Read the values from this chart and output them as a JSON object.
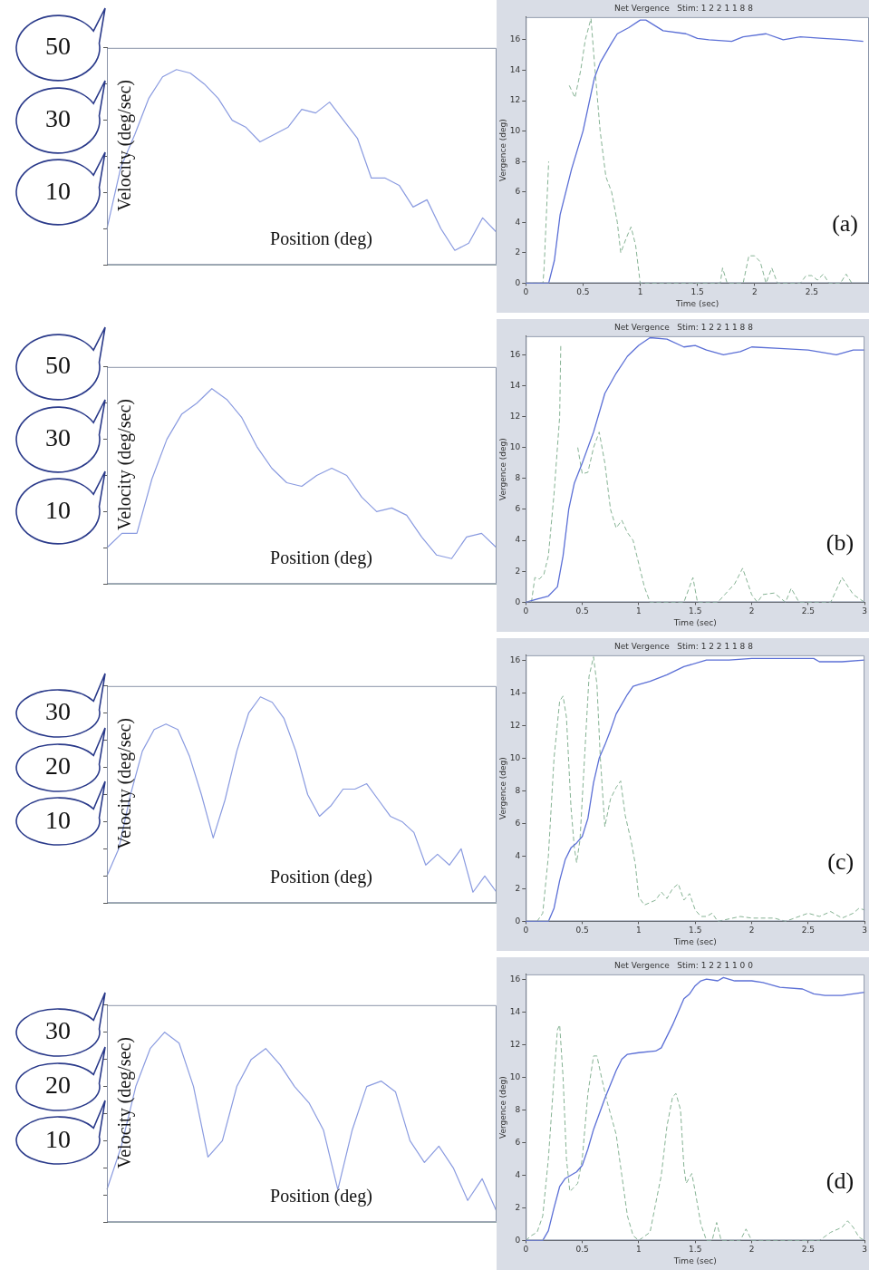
{
  "chart_data": [
    {
      "type": "line",
      "xlabel": "Position (deg)",
      "ylabel": "Velocity (deg/sec)",
      "categories": [
        null,
        null,
        null,
        null,
        null,
        null,
        null,
        null,
        null,
        null,
        null,
        null,
        null,
        null,
        null,
        null,
        null,
        null,
        null,
        null,
        null,
        null,
        null,
        null,
        null,
        null,
        null,
        null,
        null
      ],
      "ylim": [
        -10,
        50
      ],
      "yticks": [
        {
          "value": -10,
          "label": null
        },
        {
          "value": 0,
          "label": null
        },
        10,
        {
          "value": 20,
          "label": null
        },
        30,
        {
          "value": 40,
          "label": null
        },
        50
      ],
      "tick_labels": "y",
      "series": [
        {
          "color": "#8a9be0",
          "values": [
            0,
            17,
            26,
            36,
            42,
            44,
            43,
            40,
            36,
            30,
            28,
            24,
            26,
            28,
            33,
            32,
            35,
            30,
            25,
            14,
            14,
            12,
            6,
            8,
            0,
            -6,
            -4,
            3,
            -1
          ]
        }
      ]
    },
    {
      "type": "line",
      "title": "Net Vergence   Stim: 1 2 2 1 1 8 8",
      "xlabel": "Time (sec)",
      "ylabel": "Vergence (deg)",
      "xlim": [
        0,
        3
      ],
      "xticks": [
        0,
        0.5,
        1,
        1.5,
        2,
        2.5
      ],
      "ylim": [
        0,
        17.5
      ],
      "yticks": [
        0,
        2,
        4,
        6,
        8,
        10,
        12,
        14,
        16
      ],
      "annotations": [
        "(a)"
      ],
      "series": [
        {
          "color": "#5b6fd6",
          "x": [
            0,
            0.2,
            0.25,
            0.3,
            0.4,
            0.5,
            0.6,
            0.65,
            0.75,
            0.8,
            0.9,
            1.0,
            1.05,
            1.2,
            1.4,
            1.5,
            1.6,
            1.8,
            1.9,
            2.1,
            2.25,
            2.4,
            2.6,
            2.8,
            2.95
          ],
          "values": [
            0,
            0,
            1.5,
            4.5,
            7.5,
            10,
            13.5,
            14.5,
            15.8,
            16.4,
            16.8,
            17.3,
            17.3,
            16.6,
            16.4,
            16.1,
            16,
            15.9,
            16.2,
            16.4,
            16,
            16.2,
            16.1,
            16,
            15.9
          ]
        },
        {
          "color": "#86b394",
          "line_style": "dashed",
          "x": [
            0,
            0.15,
            0.16,
            0.2,
            0.25,
            0.35,
            0.38,
            0.43,
            0.48,
            0.52,
            0.57,
            0.6,
            0.65,
            0.7,
            0.75,
            0.8,
            0.83,
            0.88,
            0.92,
            0.96,
            1.0,
            1.7,
            1.72,
            1.76,
            1.9,
            1.95,
            2.0,
            2.05,
            2.1,
            2.15,
            2.2,
            2.4,
            2.45,
            2.5,
            2.55,
            2.6,
            2.65,
            2.75,
            2.8,
            2.85
          ],
          "values": [
            0,
            0,
            1,
            8,
            null,
            null,
            13,
            12.2,
            14,
            16,
            17.4,
            14.5,
            10,
            7,
            6,
            4,
            2,
            3,
            3.7,
            2.5,
            0,
            0,
            1,
            0,
            0,
            1.8,
            1.8,
            1.4,
            0,
            1,
            0,
            0,
            0.5,
            0.5,
            0.2,
            0.6,
            0,
            0,
            0.6,
            0
          ]
        }
      ]
    },
    {
      "type": "line",
      "xlabel": "Position (deg)",
      "ylabel": "Velocity (deg/sec)",
      "categories": [
        null,
        null,
        null,
        null,
        null,
        null,
        null,
        null,
        null,
        null,
        null,
        null,
        null,
        null,
        null,
        null,
        null,
        null,
        null,
        null,
        null,
        null,
        null,
        null,
        null,
        null,
        null
      ],
      "ylim": [
        -10,
        50
      ],
      "yticks": [
        {
          "value": -10,
          "label": null
        },
        {
          "value": 0,
          "label": null
        },
        10,
        {
          "value": 20,
          "label": null
        },
        30,
        {
          "value": 40,
          "label": null
        },
        50
      ],
      "tick_labels": "y",
      "series": [
        {
          "color": "#8a9be0",
          "values": [
            0,
            4,
            4,
            19,
            30,
            37,
            40,
            44,
            41,
            36,
            28,
            22,
            18,
            17,
            20,
            22,
            20,
            14,
            10,
            11,
            9,
            3,
            -2,
            -3,
            3,
            4,
            0
          ]
        }
      ]
    },
    {
      "type": "line",
      "title": "Net Vergence   Stim: 1 2 2 1 1 8 8",
      "xlabel": "Time (sec)",
      "ylabel": "Vergence (deg)",
      "xlim": [
        0,
        3
      ],
      "xticks": [
        0,
        0.5,
        1,
        1.5,
        2,
        2.5,
        3
      ],
      "ylim": [
        0,
        17.2
      ],
      "yticks": [
        0,
        2,
        4,
        6,
        8,
        10,
        12,
        14,
        16
      ],
      "annotations": [
        "(b)"
      ],
      "series": [
        {
          "color": "#5b6fd6",
          "x": [
            0,
            0.1,
            0.2,
            0.28,
            0.33,
            0.38,
            0.43,
            0.5,
            0.6,
            0.7,
            0.8,
            0.9,
            1.0,
            1.1,
            1.25,
            1.4,
            1.5,
            1.6,
            1.75,
            1.9,
            2.0,
            2.25,
            2.5,
            2.75,
            2.9,
            3.0
          ],
          "values": [
            0,
            0.2,
            0.4,
            1,
            3,
            6,
            7.7,
            9,
            11,
            13.5,
            14.8,
            15.9,
            16.6,
            17.1,
            17,
            16.5,
            16.6,
            16.3,
            16,
            16.2,
            16.5,
            16.4,
            16.3,
            16,
            16.3,
            16.3
          ]
        },
        {
          "color": "#86b394",
          "line_style": "dashed",
          "x": [
            0.05,
            0.08,
            0.12,
            0.16,
            0.2,
            0.25,
            0.3,
            0.31,
            0.33,
            0.43,
            0.46,
            0.5,
            0.55,
            0.6,
            0.65,
            0.7,
            0.75,
            0.8,
            0.85,
            0.9,
            0.95,
            1.0,
            1.05,
            1.1,
            1.4,
            1.48,
            1.52,
            1.7,
            1.85,
            1.92,
            2.0,
            2.05,
            2.1,
            2.2,
            2.3,
            2.35,
            2.42,
            2.7,
            2.8,
            2.9,
            3.0
          ],
          "values": [
            0,
            1.6,
            1.5,
            1.8,
            3,
            7,
            12,
            16.7,
            null,
            null,
            10,
            8.3,
            8.4,
            10,
            11,
            9,
            6,
            4.8,
            5.3,
            4.5,
            4,
            2.5,
            1,
            0,
            0,
            1.6,
            0,
            0,
            1.2,
            2.2,
            0.5,
            0,
            0.5,
            0.6,
            0,
            0.9,
            0,
            0,
            1.6,
            0.5,
            0
          ]
        }
      ]
    },
    {
      "type": "line",
      "xlabel": "Position (deg)",
      "ylabel": "Velocity (deg/sec)",
      "categories": [
        null,
        null,
        null,
        null,
        null,
        null,
        null,
        null,
        null,
        null,
        null,
        null,
        null,
        null,
        null,
        null,
        null,
        null,
        null,
        null,
        null,
        null,
        null,
        null,
        null,
        null,
        null,
        null,
        null,
        null,
        null,
        null,
        null,
        null
      ],
      "ylim": [
        -5,
        35
      ],
      "yticks": [
        {
          "value": -5,
          "label": null
        },
        {
          "value": 0,
          "label": null
        },
        {
          "value": 5,
          "label": null
        },
        10,
        {
          "value": 15,
          "label": null
        },
        20,
        {
          "value": 25,
          "label": null
        },
        30,
        {
          "value": 35,
          "label": null
        }
      ],
      "tick_labels": "y",
      "series": [
        {
          "color": "#8a9be0",
          "values": [
            0,
            5,
            15,
            23,
            27,
            28,
            27,
            22,
            15,
            7,
            14,
            23,
            30,
            33,
            32,
            29,
            23,
            15,
            11,
            13,
            16,
            16,
            17,
            14,
            11,
            10,
            8,
            2,
            4,
            2,
            5,
            -3,
            0,
            -3
          ]
        }
      ]
    },
    {
      "type": "line",
      "title": "Net Vergence   Stim: 1 2 2 1 1 8 8",
      "xlabel": "Time (sec)",
      "ylabel": "Vergence (deg)",
      "xlim": [
        0,
        3
      ],
      "xticks": [
        0,
        0.5,
        1,
        1.5,
        2,
        2.5,
        3
      ],
      "ylim": [
        0,
        16.3
      ],
      "yticks": [
        0,
        2,
        4,
        6,
        8,
        10,
        12,
        14,
        16
      ],
      "annotations": [
        "(c)"
      ],
      "series": [
        {
          "color": "#5b6fd6",
          "x": [
            0,
            0.2,
            0.25,
            0.3,
            0.35,
            0.4,
            0.45,
            0.5,
            0.55,
            0.6,
            0.65,
            0.7,
            0.75,
            0.8,
            0.9,
            0.95,
            1.0,
            1.1,
            1.25,
            1.4,
            1.6,
            1.8,
            2.0,
            2.3,
            2.55,
            2.6,
            2.8,
            3.0
          ],
          "values": [
            0,
            0,
            0.8,
            2.5,
            3.8,
            4.5,
            4.8,
            5.2,
            6.3,
            8.5,
            10,
            10.8,
            11.7,
            12.7,
            13.9,
            14.4,
            14.5,
            14.7,
            15.1,
            15.6,
            16,
            16,
            16.1,
            16.1,
            16.1,
            15.9,
            15.9,
            16
          ]
        },
        {
          "color": "#86b394",
          "line_style": "dashed",
          "x": [
            0.1,
            0.15,
            0.2,
            0.25,
            0.3,
            0.33,
            0.36,
            0.4,
            0.43,
            0.45,
            0.48,
            0.52,
            0.56,
            0.6,
            0.63,
            0.66,
            0.7,
            0.75,
            0.8,
            0.84,
            0.88,
            0.93,
            0.97,
            1.0,
            1.05,
            1.15,
            1.2,
            1.25,
            1.3,
            1.35,
            1.4,
            1.45,
            1.5,
            1.55,
            1.6,
            1.65,
            1.7,
            1.9,
            2.0,
            2.2,
            2.3,
            2.5,
            2.6,
            2.7,
            2.8,
            2.9,
            2.95,
            3.0
          ],
          "values": [
            0,
            0.5,
            4,
            10,
            13.5,
            13.8,
            12.5,
            7,
            4.5,
            3.6,
            5,
            10,
            15,
            16.2,
            14.5,
            10,
            5.8,
            7.5,
            8.2,
            8.6,
            6.5,
            5,
            3.5,
            1.5,
            1,
            1.3,
            1.8,
            1.4,
            2,
            2.3,
            1.3,
            1.7,
            0.7,
            0.3,
            0.3,
            0.5,
            0,
            0.3,
            0.2,
            0.2,
            0,
            0.5,
            0.3,
            0.6,
            0.2,
            0.5,
            0.8,
            0.7
          ]
        }
      ]
    },
    {
      "type": "line",
      "xlabel": "Position (deg)",
      "ylabel": "Velocity (deg/sec)",
      "categories": [
        null,
        null,
        null,
        null,
        null,
        null,
        null,
        null,
        null,
        null,
        null,
        null,
        null,
        null,
        null,
        null,
        null,
        null,
        null,
        null,
        null,
        null,
        null,
        null,
        null,
        null,
        null,
        null
      ],
      "ylim": [
        -5,
        35
      ],
      "yticks": [
        {
          "value": -5,
          "label": null
        },
        {
          "value": 0,
          "label": null
        },
        {
          "value": 5,
          "label": null
        },
        10,
        {
          "value": 15,
          "label": null
        },
        20,
        {
          "value": 25,
          "label": null
        },
        30,
        {
          "value": 35,
          "label": null
        }
      ],
      "tick_labels": "y",
      "series": [
        {
          "color": "#8a9be0",
          "values": [
            1,
            9,
            20,
            27,
            30,
            28,
            20,
            7,
            10,
            20,
            25,
            27,
            24,
            20,
            17,
            12,
            1,
            12,
            20,
            21,
            19,
            10,
            6,
            9,
            5,
            -1,
            3,
            -3
          ]
        }
      ]
    },
    {
      "type": "line",
      "title": "Net Vergence   Stim: 1 2 2 1 1 0 0",
      "xlabel": "Time (sec)",
      "ylabel": "Vergence (deg)",
      "xlim": [
        0,
        3
      ],
      "xticks": [
        0,
        0.5,
        1,
        1.5,
        2,
        2.5,
        3
      ],
      "ylim": [
        0,
        16.3
      ],
      "yticks": [
        0,
        2,
        4,
        6,
        8,
        10,
        12,
        14,
        16
      ],
      "annotations": [
        "(d)"
      ],
      "series": [
        {
          "color": "#5b6fd6",
          "x": [
            0,
            0.15,
            0.2,
            0.25,
            0.3,
            0.35,
            0.45,
            0.5,
            0.55,
            0.6,
            0.7,
            0.8,
            0.85,
            0.9,
            1.0,
            1.15,
            1.2,
            1.3,
            1.4,
            1.45,
            1.5,
            1.55,
            1.6,
            1.7,
            1.75,
            1.85,
            2.0,
            2.1,
            2.25,
            2.45,
            2.55,
            2.65,
            2.8,
            2.9,
            3.0
          ],
          "values": [
            0,
            0,
            0.6,
            2,
            3.3,
            3.8,
            4.2,
            4.6,
            5.6,
            6.8,
            8.7,
            10.4,
            11.1,
            11.4,
            11.5,
            11.6,
            11.8,
            13.2,
            14.8,
            15.1,
            15.6,
            15.9,
            16,
            15.9,
            16.1,
            15.9,
            15.9,
            15.8,
            15.5,
            15.4,
            15.1,
            15,
            15,
            15.1,
            15.2
          ]
        },
        {
          "color": "#86b394",
          "line_style": "dashed",
          "x": [
            0,
            0.05,
            0.1,
            0.15,
            0.2,
            0.25,
            0.28,
            0.3,
            0.33,
            0.36,
            0.39,
            0.42,
            0.46,
            0.5,
            0.55,
            0.6,
            0.63,
            0.67,
            0.72,
            0.8,
            0.85,
            0.9,
            0.95,
            1.0,
            1.1,
            1.2,
            1.25,
            1.3,
            1.33,
            1.37,
            1.4,
            1.42,
            1.47,
            1.5,
            1.55,
            1.6,
            1.65,
            1.69,
            1.73,
            1.9,
            1.95,
            2.0,
            2.6,
            2.7,
            2.8,
            2.85,
            2.9,
            2.95,
            3.0
          ],
          "values": [
            0,
            0.3,
            0.5,
            1.5,
            5,
            10,
            12.9,
            13.2,
            10,
            5,
            3,
            3.2,
            3.5,
            5,
            9,
            11.3,
            11.3,
            10,
            8.5,
            6.5,
            4,
            1.5,
            0.3,
            0,
            0.5,
            4,
            7,
            8.8,
            9,
            8,
            4.5,
            3.5,
            4.1,
            3,
            1,
            0,
            0,
            1.1,
            0,
            0,
            0.7,
            0,
            0,
            0.5,
            0.8,
            1.2,
            0.8,
            0.2,
            0
          ]
        }
      ]
    }
  ]
}
